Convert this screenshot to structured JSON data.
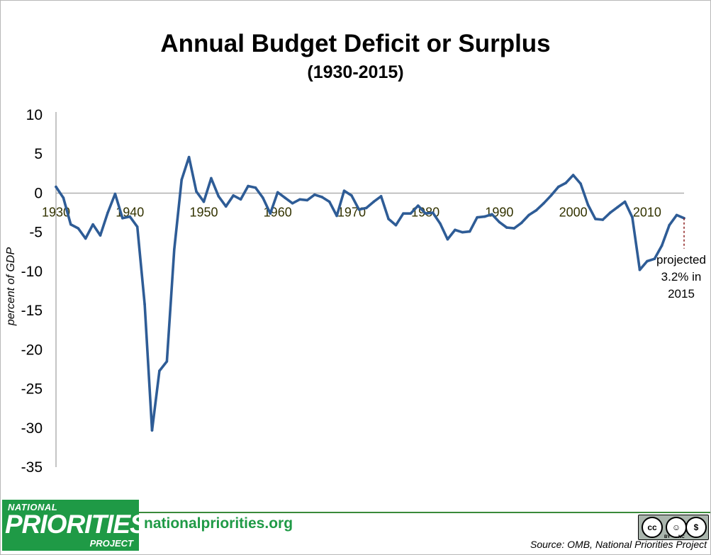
{
  "header": {
    "title": "Annual Budget Deficit or Surplus",
    "subtitle": "(1930-2015)"
  },
  "chart_data": {
    "type": "line",
    "title": "Annual Budget Deficit or Surplus",
    "subtitle": "(1930-2015)",
    "xlabel": "",
    "ylabel": "percent of GDP",
    "ylim": [
      -35,
      10
    ],
    "xlim": [
      1930,
      2015
    ],
    "y_ticks": [
      10,
      5,
      0,
      -5,
      -10,
      -15,
      -20,
      -25,
      -30,
      -35
    ],
    "x_ticks": [
      1930,
      1940,
      1950,
      1960,
      1970,
      1980,
      1990,
      2000,
      2010
    ],
    "grid": false,
    "line_color": "#2e5c96",
    "x": [
      1930,
      1931,
      1932,
      1933,
      1934,
      1935,
      1936,
      1937,
      1938,
      1939,
      1940,
      1941,
      1942,
      1943,
      1944,
      1945,
      1946,
      1947,
      1948,
      1949,
      1950,
      1951,
      1952,
      1953,
      1954,
      1955,
      1956,
      1957,
      1958,
      1959,
      1960,
      1961,
      1962,
      1963,
      1964,
      1965,
      1966,
      1967,
      1968,
      1969,
      1970,
      1971,
      1972,
      1973,
      1974,
      1975,
      1976,
      1977,
      1978,
      1979,
      1980,
      1981,
      1982,
      1983,
      1984,
      1985,
      1986,
      1987,
      1988,
      1989,
      1990,
      1991,
      1992,
      1993,
      1994,
      1995,
      1996,
      1997,
      1998,
      1999,
      2000,
      2001,
      2002,
      2003,
      2004,
      2005,
      2006,
      2007,
      2008,
      2009,
      2010,
      2011,
      2012,
      2013,
      2014,
      2015
    ],
    "values": [
      0.8,
      -0.6,
      -4.0,
      -4.5,
      -5.8,
      -4.0,
      -5.4,
      -2.5,
      -0.1,
      -3.2,
      -3.0,
      -4.3,
      -14.2,
      -30.3,
      -22.7,
      -21.5,
      -7.2,
      1.7,
      4.6,
      0.2,
      -1.1,
      1.9,
      -0.4,
      -1.7,
      -0.3,
      -0.8,
      0.9,
      0.7,
      -0.6,
      -2.6,
      0.1,
      -0.6,
      -1.3,
      -0.8,
      -0.9,
      -0.2,
      -0.5,
      -1.1,
      -2.9,
      0.3,
      -0.3,
      -2.1,
      -1.9,
      -1.1,
      -0.4,
      -3.3,
      -4.1,
      -2.6,
      -2.6,
      -1.6,
      -2.6,
      -2.5,
      -3.9,
      -5.9,
      -4.7,
      -5.0,
      -4.9,
      -3.1,
      -3.0,
      -2.7,
      -3.7,
      -4.4,
      -4.5,
      -3.8,
      -2.8,
      -2.2,
      -1.3,
      -0.3,
      0.8,
      1.3,
      2.3,
      1.2,
      -1.5,
      -3.3,
      -3.4,
      -2.5,
      -1.8,
      -1.1,
      -3.1,
      -9.8,
      -8.7,
      -8.4,
      -6.7,
      -4.1,
      -2.8,
      -3.2
    ],
    "annotation": {
      "lines": [
        "projected",
        "3.2% in",
        "2015"
      ],
      "year": 2015,
      "value": -3.2
    }
  },
  "footer": {
    "logo_line1": "NATIONAL",
    "logo_line2": "PRIORITIES",
    "logo_line3": "PROJECT",
    "site": "nationalpriorities.org",
    "license_cc": "cc",
    "license_by": "BY",
    "license_nc": "NC",
    "source": "Source: OMB, National Priorities Project"
  },
  "colors": {
    "line": "#2e5c96",
    "axis": "#b0b0b0",
    "brand_green": "#1f9a46",
    "xtick_text": "#333300",
    "projection": "#8b1a1a"
  }
}
